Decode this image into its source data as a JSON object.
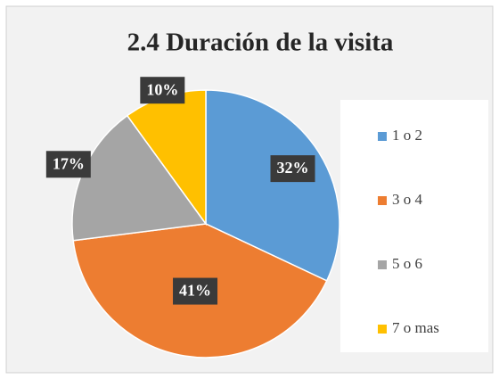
{
  "chart_data": {
    "type": "pie",
    "title": "2.4 Duración de la visita",
    "categories": [
      "1 o 2",
      "3 o 4",
      "5 o 6",
      "7 o mas"
    ],
    "values": [
      32,
      41,
      17,
      10
    ],
    "value_labels": [
      "32%",
      "41%",
      "17%",
      "10%"
    ],
    "colors": [
      "#5b9bd5",
      "#ed7d31",
      "#a5a5a5",
      "#ffc000"
    ],
    "legend": "right"
  }
}
